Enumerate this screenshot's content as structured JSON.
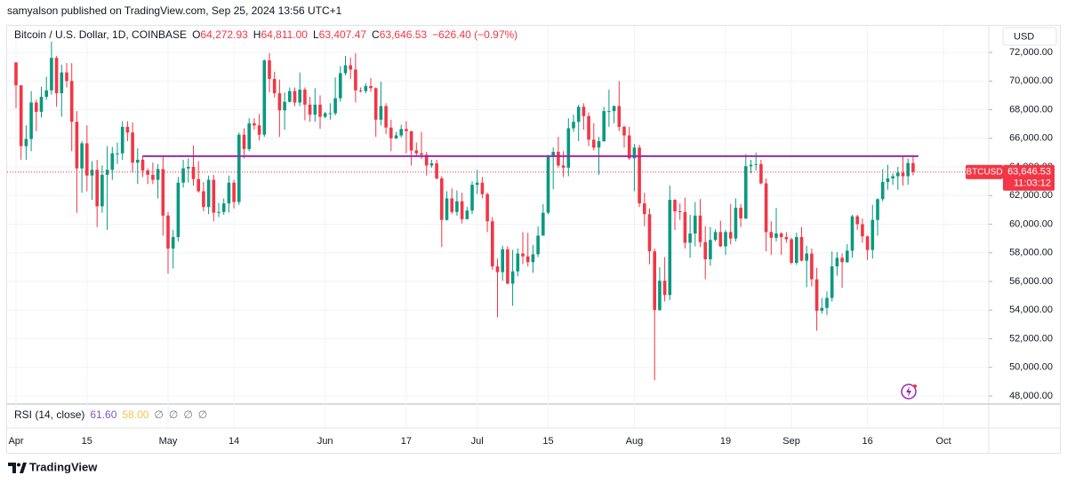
{
  "header": {
    "publisher": "samyalson published on TradingView.com, Sep 25, 2024 13:56 UTC+1",
    "brand": "TradingView"
  },
  "chart_data": {
    "type": "candlestick",
    "legend_symbol": "Bitcoin / U.S. Dollar, 1D, COINBASE",
    "ohlc_legend": [
      {
        "prefix": "O",
        "value": 64272.93,
        "label": "64,272.93"
      },
      {
        "prefix": "H",
        "value": 64811,
        "label": "64,811.00"
      },
      {
        "prefix": "L",
        "value": 63407.47,
        "label": "63,407.47"
      },
      {
        "prefix": "C",
        "value": 63646.53,
        "label": "63,646.53"
      }
    ],
    "change": {
      "value": -626.4,
      "label": "−626.40 (−0.97%)"
    },
    "currency": "USD",
    "up_color": "#089981",
    "down_color": "#f23645",
    "x": [
      "Apr 1",
      "Apr 2",
      "Apr 3",
      "Apr 4",
      "Apr 5",
      "Apr 6",
      "Apr 7",
      "Apr 8",
      "Apr 9",
      "Apr 10",
      "Apr 11",
      "Apr 12",
      "Apr 13",
      "Apr 14",
      "Apr 15",
      "Apr 16",
      "Apr 17",
      "Apr 18",
      "Apr 19",
      "Apr 20",
      "Apr 21",
      "Apr 22",
      "Apr 23",
      "Apr 24",
      "Apr 25",
      "Apr 26",
      "Apr 27",
      "Apr 28",
      "Apr 29",
      "Apr 30",
      "May 1",
      "May 2",
      "May 3",
      "May 4",
      "May 5",
      "May 6",
      "May 7",
      "May 8",
      "May 9",
      "May 10",
      "May 11",
      "May 12",
      "May 13",
      "May 14",
      "May 15",
      "May 16",
      "May 17",
      "May 18",
      "May 19",
      "May 20",
      "May 21",
      "May 22",
      "May 23",
      "May 24",
      "May 25",
      "May 26",
      "May 27",
      "May 28",
      "May 29",
      "May 30",
      "May 31",
      "Jun 1",
      "Jun 2",
      "Jun 3",
      "Jun 4",
      "Jun 5",
      "Jun 6",
      "Jun 7",
      "Jun 8",
      "Jun 9",
      "Jun 10",
      "Jun 11",
      "Jun 12",
      "Jun 13",
      "Jun 14",
      "Jun 15",
      "Jun 16",
      "Jun 17",
      "Jun 18",
      "Jun 19",
      "Jun 20",
      "Jun 21",
      "Jun 22",
      "Jun 23",
      "Jun 24",
      "Jun 25",
      "Jun 26",
      "Jun 27",
      "Jun 28",
      "Jun 29",
      "Jun 30",
      "Jul 1",
      "Jul 2",
      "Jul 3",
      "Jul 4",
      "Jul 5",
      "Jul 6",
      "Jul 7",
      "Jul 8",
      "Jul 9",
      "Jul 10",
      "Jul 11",
      "Jul 12",
      "Jul 13",
      "Jul 14",
      "Jul 15",
      "Jul 16",
      "Jul 17",
      "Jul 18",
      "Jul 19",
      "Jul 20",
      "Jul 21",
      "Jul 22",
      "Jul 23",
      "Jul 24",
      "Jul 25",
      "Jul 26",
      "Jul 27",
      "Jul 28",
      "Jul 29",
      "Jul 30",
      "Jul 31",
      "Aug 1",
      "Aug 2",
      "Aug 3",
      "Aug 4",
      "Aug 5",
      "Aug 6",
      "Aug 7",
      "Aug 8",
      "Aug 9",
      "Aug 10",
      "Aug 11",
      "Aug 12",
      "Aug 13",
      "Aug 14",
      "Aug 15",
      "Aug 16",
      "Aug 17",
      "Aug 18",
      "Aug 19",
      "Aug 20",
      "Aug 21",
      "Aug 22",
      "Aug 23",
      "Aug 24",
      "Aug 25",
      "Aug 26",
      "Aug 27",
      "Aug 28",
      "Aug 29",
      "Aug 30",
      "Aug 31",
      "Sep 1",
      "Sep 2",
      "Sep 3",
      "Sep 4",
      "Sep 5",
      "Sep 6",
      "Sep 7",
      "Sep 8",
      "Sep 9",
      "Sep 10",
      "Sep 11",
      "Sep 12",
      "Sep 13",
      "Sep 14",
      "Sep 15",
      "Sep 16",
      "Sep 17",
      "Sep 18",
      "Sep 19",
      "Sep 20",
      "Sep 21",
      "Sep 22",
      "Sep 23",
      "Sep 24",
      "Sep 25"
    ],
    "series": [
      {
        "name": "BTCUSD",
        "open": [
          71300,
          69700,
          65450,
          65950,
          68500,
          67850,
          68900,
          69350,
          71620,
          69150,
          70600,
          70000,
          67150,
          63900,
          65650,
          63400,
          63800,
          61250,
          63450,
          63800,
          64950,
          64950,
          66800,
          66400,
          64300,
          64500,
          63750,
          63450,
          63100,
          63850,
          60600,
          58300,
          59100,
          62900,
          63900,
          64000,
          63150,
          62300,
          61200,
          63100,
          60800,
          60850,
          61450,
          62900,
          61550,
          66250,
          65250,
          67050,
          66900,
          66250,
          71450,
          70150,
          69150,
          67950,
          68550,
          69300,
          68500,
          69400,
          68350,
          67650,
          68350,
          67500,
          67750,
          67750,
          68800,
          70550,
          71100,
          70800,
          69350,
          69300,
          69650,
          69500,
          67300,
          68250,
          66750,
          66000,
          66200,
          66650,
          66500,
          65150,
          64950,
          64850,
          64100,
          64250,
          63200,
          60300,
          61800,
          60850,
          61600,
          60350,
          60950,
          62750,
          62900,
          62100,
          60200,
          57050,
          56650,
          58250,
          55850,
          56700,
          57950,
          57750,
          57350,
          57900,
          59200,
          60800,
          64700,
          65050,
          64100,
          63950,
          66700,
          67150,
          68200,
          67550,
          65900,
          65350,
          65800,
          67900,
          67900,
          68250,
          66800,
          66200,
          64600,
          65350,
          61450,
          60700,
          58100,
          54000,
          56050,
          55050,
          61700,
          60900,
          60850,
          58700,
          59350,
          60600,
          58750,
          57550,
          58900,
          59450,
          58450,
          59450,
          59000,
          61150,
          60400,
          64050,
          64150,
          64200,
          62850,
          59450,
          59050,
          59350,
          59100,
          58950,
          57300,
          59100,
          57450,
          57950,
          56150,
          53950,
          54150,
          54850,
          57050,
          57650,
          57350,
          58150,
          60550,
          60000,
          59150,
          58200,
          60300,
          61750,
          62950,
          63200,
          63350,
          63600,
          63350,
          64272.93
        ],
        "high": [
          71300,
          69700,
          66900,
          69300,
          68700,
          69600,
          70300,
          72750,
          71750,
          71150,
          71250,
          71250,
          67900,
          65800,
          66900,
          64400,
          64500,
          64100,
          65450,
          65400,
          65700,
          67200,
          67200,
          67100,
          65300,
          64800,
          63900,
          64300,
          64200,
          64700,
          60850,
          59600,
          63300,
          64500,
          64600,
          65500,
          64400,
          62950,
          63400,
          63450,
          61500,
          61800,
          63400,
          63100,
          66400,
          66700,
          67400,
          67400,
          67700,
          71500,
          71950,
          70650,
          70100,
          69200,
          69550,
          69550,
          70600,
          69550,
          68900,
          69500,
          69000,
          67850,
          68450,
          70250,
          71050,
          71750,
          71650,
          71950,
          69550,
          69850,
          70200,
          69550,
          69950,
          68450,
          67300,
          66450,
          66950,
          67200,
          66500,
          65700,
          66450,
          65050,
          64500,
          64500,
          63350,
          62300,
          62500,
          62350,
          62200,
          61200,
          63000,
          63800,
          63300,
          62200,
          60500,
          57600,
          58500,
          58450,
          58200,
          58300,
          59450,
          59400,
          58550,
          59850,
          61400,
          64850,
          65350,
          66100,
          65100,
          67400,
          67650,
          68350,
          68450,
          67800,
          67050,
          66100,
          68200,
          69400,
          68300,
          70000,
          66900,
          66800,
          65600,
          65550,
          62200,
          61100,
          58300,
          57000,
          57700,
          62700,
          61750,
          61450,
          61850,
          60650,
          61550,
          61750,
          59850,
          59800,
          59650,
          60250,
          59600,
          61400,
          61800,
          61400,
          64900,
          64500,
          65000,
          64500,
          63200,
          60200,
          61150,
          59450,
          59450,
          59050,
          59400,
          59800,
          58500,
          58300,
          56950,
          54850,
          55300,
          58100,
          58050,
          57950,
          58600,
          60650,
          60650,
          60400,
          59200,
          61350,
          61800,
          63850,
          64150,
          63550,
          64000,
          64800,
          64600,
          64811
        ],
        "low": [
          68100,
          64500,
          64500,
          65100,
          66500,
          67450,
          68700,
          69050,
          68200,
          67500,
          69550,
          65100,
          60800,
          62200,
          62300,
          61700,
          59800,
          60800,
          59600,
          63100,
          64200,
          64500,
          65800,
          63600,
          62800,
          63300,
          62800,
          62800,
          61800,
          59200,
          56550,
          56900,
          58800,
          62550,
          62900,
          62700,
          62200,
          60900,
          60700,
          60200,
          60500,
          60650,
          60800,
          61100,
          61350,
          64600,
          65100,
          66600,
          65850,
          66100,
          69200,
          68850,
          66100,
          66600,
          68500,
          68250,
          68250,
          67250,
          67150,
          67150,
          66650,
          67400,
          67300,
          67600,
          68550,
          70400,
          70150,
          68500,
          69200,
          69150,
          69250,
          66100,
          66900,
          66300,
          65100,
          65950,
          66050,
          64950,
          64100,
          64700,
          64550,
          63400,
          63950,
          63100,
          58400,
          60250,
          60700,
          60600,
          60050,
          60350,
          60700,
          62100,
          61800,
          59450,
          56800,
          53500,
          56050,
          55800,
          54300,
          56350,
          57200,
          57050,
          56600,
          57700,
          59200,
          60700,
          62450,
          63950,
          63300,
          63350,
          66450,
          65800,
          66600,
          65450,
          65150,
          63450,
          65750,
          66800,
          67050,
          66500,
          65350,
          64500,
          62300,
          61200,
          59850,
          57200,
          49100,
          53950,
          54600,
          54700,
          59600,
          60300,
          58300,
          57650,
          58450,
          58400,
          56150,
          57100,
          58800,
          58400,
          57850,
          58600,
          58800,
          59800,
          60350,
          63550,
          63750,
          62800,
          58100,
          57850,
          58800,
          57850,
          58700,
          57200,
          57150,
          57400,
          55600,
          55650,
          52550,
          53750,
          53650,
          54600,
          56400,
          55550,
          57300,
          57650,
          59600,
          58700,
          57500,
          57600,
          59200,
          61600,
          62400,
          62750,
          62400,
          62700,
          62750,
          63407.47
        ],
        "close": [
          69700,
          65450,
          65950,
          68500,
          67850,
          68900,
          69350,
          71620,
          69150,
          70600,
          70000,
          67150,
          63900,
          65650,
          63400,
          63800,
          61250,
          63450,
          63800,
          64950,
          64950,
          66800,
          66400,
          64300,
          64500,
          63750,
          63450,
          63100,
          63850,
          60600,
          58300,
          59100,
          62900,
          63900,
          64000,
          63150,
          62300,
          61200,
          63100,
          60800,
          60850,
          61450,
          62900,
          61550,
          66250,
          65250,
          67050,
          66900,
          66250,
          71450,
          70150,
          69150,
          67950,
          68550,
          69300,
          68500,
          69400,
          68350,
          67650,
          68350,
          67500,
          67750,
          67750,
          68800,
          70550,
          71100,
          70800,
          69350,
          69300,
          69650,
          69500,
          67300,
          68250,
          66750,
          66000,
          66200,
          66650,
          66500,
          65150,
          64950,
          64850,
          64100,
          64250,
          63200,
          60300,
          61800,
          60850,
          61600,
          60350,
          60950,
          62750,
          62900,
          62100,
          60200,
          57050,
          56650,
          58250,
          55850,
          56700,
          57950,
          57750,
          57350,
          57900,
          59200,
          60800,
          64700,
          65050,
          64100,
          63950,
          66700,
          67150,
          68200,
          67550,
          65900,
          65350,
          65800,
          67900,
          67900,
          68250,
          66800,
          66200,
          64600,
          65350,
          61450,
          60700,
          58100,
          54000,
          56050,
          55050,
          61700,
          60900,
          60850,
          58700,
          59350,
          60600,
          58750,
          57550,
          58900,
          59450,
          58450,
          59450,
          59000,
          61150,
          60400,
          64050,
          64150,
          64200,
          62850,
          59450,
          59050,
          59350,
          59100,
          58950,
          57300,
          59100,
          57450,
          57950,
          56150,
          53950,
          54150,
          54850,
          57050,
          57650,
          57350,
          58150,
          60550,
          60000,
          59150,
          58200,
          60300,
          61750,
          62950,
          63200,
          63350,
          63600,
          63350,
          64272.93,
          63646.53
        ]
      }
    ],
    "last_price": {
      "value": 63646.53,
      "label": "63,646.53",
      "countdown": "11:03:12",
      "color": "#f23645"
    },
    "hline": {
      "value": 64750,
      "color": "#9c27b0",
      "start": "Apr 26",
      "end": "Sep 25"
    },
    "ylim": [
      47440,
      72870
    ],
    "yticks": [
      {
        "value": 48000,
        "label": "48,000.00"
      },
      {
        "value": 50000,
        "label": "50,000.00"
      },
      {
        "value": 52000,
        "label": "52,000.00"
      },
      {
        "value": 54000,
        "label": "54,000.00"
      },
      {
        "value": 56000,
        "label": "56,000.00"
      },
      {
        "value": 58000,
        "label": "58,000.00"
      },
      {
        "value": 60000,
        "label": "60,000.00"
      },
      {
        "value": 62000,
        "label": "62,000.00"
      },
      {
        "value": 64000,
        "label": "64,000.00"
      },
      {
        "value": 66000,
        "label": "66,000.00"
      },
      {
        "value": 68000,
        "label": "68,000.00"
      },
      {
        "value": 70000,
        "label": "70,000.00"
      },
      {
        "value": 72000,
        "label": "72,000.00"
      }
    ],
    "xticks": [
      {
        "value": "Apr 1",
        "label": "Apr"
      },
      {
        "value": "Apr 15",
        "label": "15"
      },
      {
        "value": "May 1",
        "label": "May"
      },
      {
        "value": "May 14",
        "label": "14"
      },
      {
        "value": "Jun 1",
        "label": "Jun"
      },
      {
        "value": "Jun 17",
        "label": "17"
      },
      {
        "value": "Jul 1",
        "label": "Jul"
      },
      {
        "value": "Jul 15",
        "label": "15"
      },
      {
        "value": "Aug 1",
        "label": "Aug"
      },
      {
        "value": "Aug 19",
        "label": "19"
      },
      {
        "value": "Sep 1",
        "label": "Sep"
      },
      {
        "value": "Sep 16",
        "label": "16"
      },
      {
        "value": "Oct 1",
        "label": "Oct"
      }
    ],
    "grid": true,
    "rsi": {
      "title": "RSI (14, close)",
      "values": [
        {
          "value": 61.6,
          "label": "61.60",
          "color": "#7e57c2"
        },
        {
          "value": 58,
          "label": "58.00",
          "color": "#f7c548"
        }
      ],
      "flags": [
        "∅",
        "∅",
        "∅",
        "∅"
      ]
    }
  }
}
